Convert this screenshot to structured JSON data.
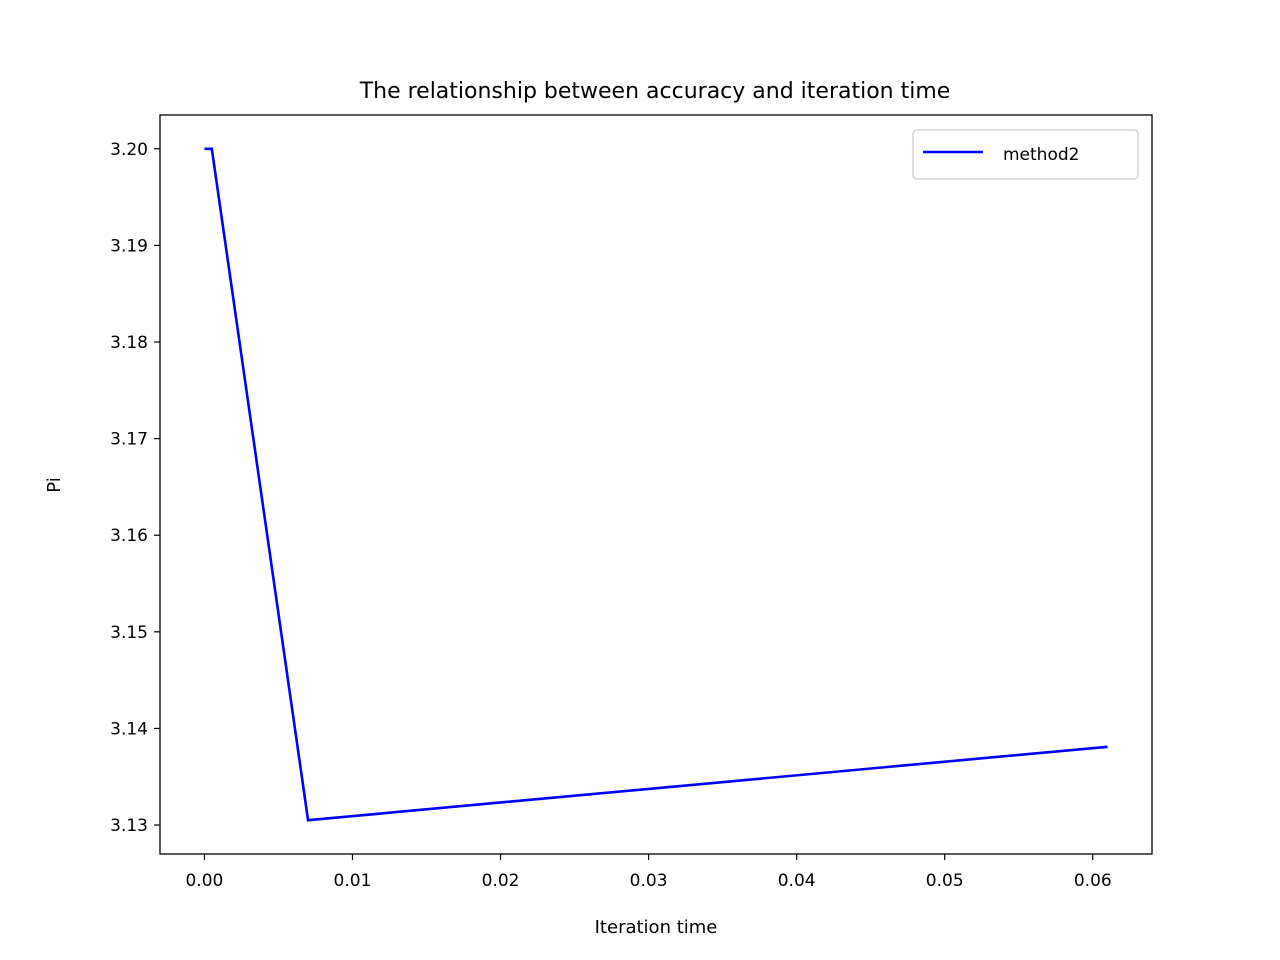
{
  "chart_data": {
    "type": "line",
    "title": "The relationship between accuracy and iteration time",
    "xlabel": "Iteration time",
    "ylabel": "Pi",
    "xlim": [
      -0.003,
      0.064
    ],
    "ylim": [
      3.127,
      3.2035
    ],
    "xticks": [
      0.0,
      0.01,
      0.02,
      0.03,
      0.04,
      0.05,
      0.06
    ],
    "xtick_labels": [
      "0.00",
      "0.01",
      "0.02",
      "0.03",
      "0.04",
      "0.05",
      "0.06"
    ],
    "yticks": [
      3.13,
      3.14,
      3.15,
      3.16,
      3.17,
      3.18,
      3.19,
      3.2
    ],
    "ytick_labels": [
      "3.13",
      "3.14",
      "3.15",
      "3.16",
      "3.17",
      "3.18",
      "3.19",
      "3.20"
    ],
    "grid": false,
    "legend_position": "top-right",
    "series": [
      {
        "name": "method2",
        "color": "#0000ff",
        "x": [
          0.0,
          0.0005,
          0.007,
          0.061
        ],
        "y": [
          3.2,
          3.2,
          3.1305,
          3.1381
        ]
      }
    ]
  }
}
